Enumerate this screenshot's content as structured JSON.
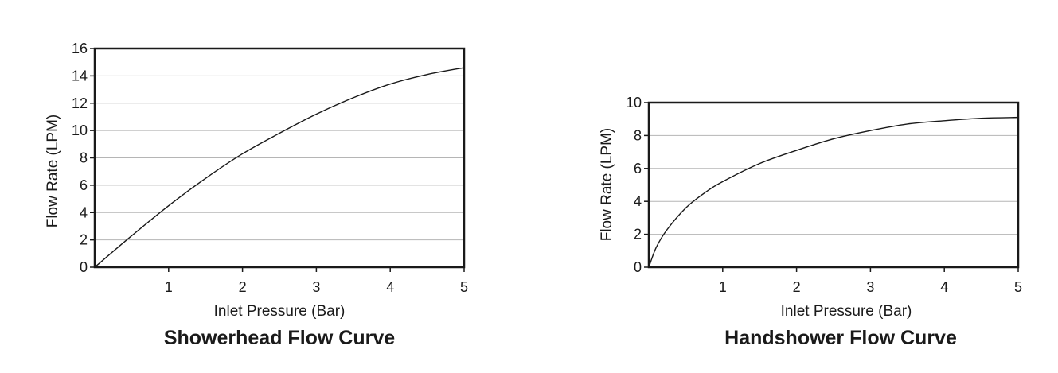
{
  "chart_data": [
    {
      "type": "line",
      "title": "Showerhead Flow Curve",
      "xlabel": "Inlet Pressure (Bar)",
      "ylabel": "Flow Rate (LPM)",
      "xlim": [
        0,
        5
      ],
      "ylim": [
        0,
        16
      ],
      "xticks": [
        "1",
        "2",
        "3",
        "4",
        "5"
      ],
      "yticks": [
        "0",
        "2",
        "4",
        "6",
        "8",
        "10",
        "12",
        "14",
        "16"
      ],
      "grid": true,
      "series": [
        {
          "x": [
            0,
            0.5,
            1,
            1.5,
            2,
            2.5,
            3,
            3.5,
            4,
            4.5,
            5
          ],
          "y": [
            0,
            2.3,
            4.5,
            6.5,
            8.3,
            9.8,
            11.2,
            12.4,
            13.4,
            14.1,
            14.6
          ]
        }
      ]
    },
    {
      "type": "line",
      "title": "Handshower Flow Curve",
      "xlabel": "Inlet Pressure (Bar)",
      "ylabel": "Flow Rate (LPM)",
      "xlim": [
        0,
        5
      ],
      "ylim": [
        0,
        10
      ],
      "xticks": [
        "1",
        "2",
        "3",
        "4",
        "5"
      ],
      "yticks": [
        "0",
        "2",
        "4",
        "6",
        "8",
        "10"
      ],
      "grid": true,
      "series": [
        {
          "x": [
            0,
            0.1,
            0.25,
            0.5,
            0.75,
            1,
            1.5,
            2,
            2.5,
            3,
            3.5,
            4,
            4.5,
            5
          ],
          "y": [
            0,
            1.2,
            2.3,
            3.6,
            4.5,
            5.2,
            6.3,
            7.1,
            7.8,
            8.3,
            8.7,
            8.9,
            9.05,
            9.1
          ]
        }
      ]
    }
  ]
}
